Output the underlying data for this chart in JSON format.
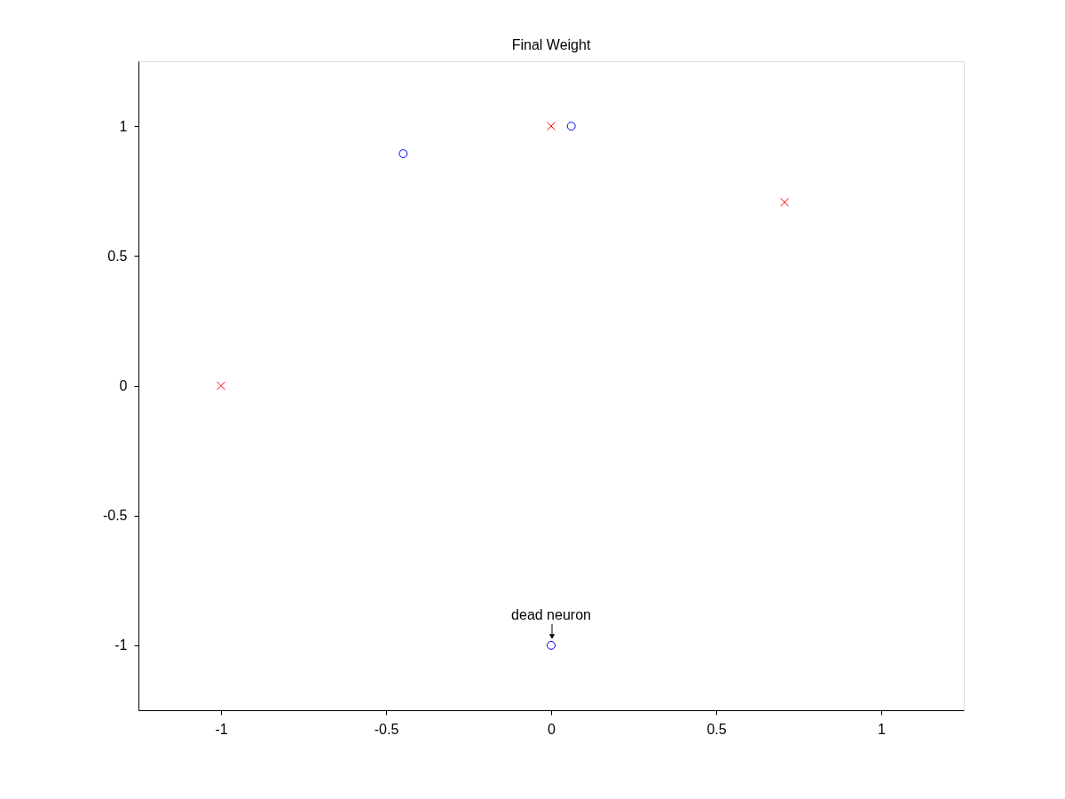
{
  "chart_data": {
    "type": "scatter",
    "title": "Final Weight",
    "xlim": [
      -1.25,
      1.25
    ],
    "xticks": [
      -1,
      -0.5,
      0,
      0.5,
      1
    ],
    "ylim": [
      -1.25,
      1.25
    ],
    "yticks": [
      -1,
      -0.5,
      0,
      0.5,
      1
    ],
    "grid": false,
    "series": [
      {
        "color": "#ff0000",
        "marker": "cross",
        "x": [
          -1,
          0,
          0.707
        ],
        "values": [
          0,
          1,
          0.707
        ]
      },
      {
        "color": "#0000ff",
        "marker": "circle",
        "x": [
          -0.448,
          0.061,
          0
        ],
        "values": [
          0.894,
          1,
          -1
        ]
      }
    ],
    "annotations": [
      {
        "text": "dead neuron",
        "x": 0,
        "y": -1
      }
    ]
  }
}
